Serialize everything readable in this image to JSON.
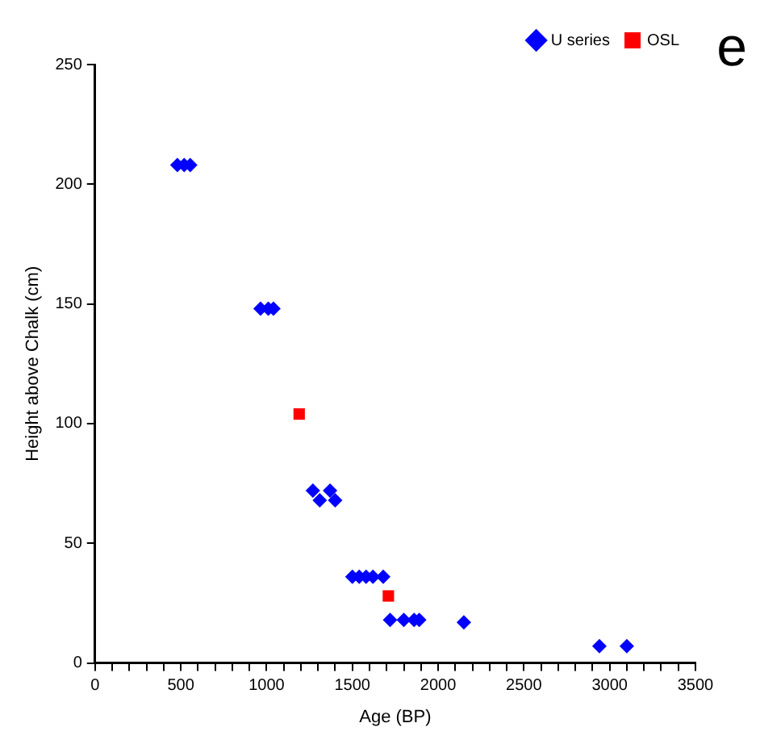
{
  "chart_data": {
    "type": "scatter",
    "xlabel": "Age (BP)",
    "ylabel": "Height above Chalk (cm)",
    "annotations": [
      "e"
    ],
    "xlim": [
      0,
      3500
    ],
    "ylim": [
      0,
      250
    ],
    "xticks": [
      0,
      {
        "value": 100,
        "label": null
      },
      {
        "value": 200,
        "label": null
      },
      {
        "value": 300,
        "label": null
      },
      {
        "value": 400,
        "label": null
      },
      500,
      {
        "value": 600,
        "label": null
      },
      {
        "value": 700,
        "label": null
      },
      {
        "value": 800,
        "label": null
      },
      {
        "value": 900,
        "label": null
      },
      1000,
      {
        "value": 1100,
        "label": null
      },
      {
        "value": 1200,
        "label": null
      },
      {
        "value": 1300,
        "label": null
      },
      {
        "value": 1400,
        "label": null
      },
      1500,
      {
        "value": 1600,
        "label": null
      },
      {
        "value": 1700,
        "label": null
      },
      {
        "value": 1800,
        "label": null
      },
      {
        "value": 1900,
        "label": null
      },
      2000,
      {
        "value": 2100,
        "label": null
      },
      {
        "value": 2200,
        "label": null
      },
      {
        "value": 2300,
        "label": null
      },
      {
        "value": 2400,
        "label": null
      },
      2500,
      {
        "value": 2600,
        "label": null
      },
      {
        "value": 2700,
        "label": null
      },
      {
        "value": 2800,
        "label": null
      },
      {
        "value": 2900,
        "label": null
      },
      3000,
      {
        "value": 3100,
        "label": null
      },
      {
        "value": 3200,
        "label": null
      },
      {
        "value": 3300,
        "label": null
      },
      {
        "value": 3400,
        "label": null
      },
      3500
    ],
    "yticks": [
      0,
      50,
      100,
      150,
      200,
      250
    ],
    "grid": false,
    "legend": "top right",
    "series": [
      {
        "name": "U series",
        "color": "#0000ff",
        "marker": "diamond",
        "x": [
          480,
          520,
          555,
          965,
          1010,
          1040,
          1270,
          1310,
          1370,
          1400,
          1500,
          1540,
          1580,
          1620,
          1680,
          1720,
          1800,
          1860,
          1890,
          2150,
          2940,
          3100
        ],
        "values": [
          208,
          208,
          208,
          148,
          148,
          148,
          72,
          68,
          72,
          68,
          36,
          36,
          36,
          36,
          36,
          18,
          18,
          18,
          18,
          17,
          7,
          7
        ]
      },
      {
        "name": "OSL",
        "color": "#ff0000",
        "marker": "square",
        "x": [
          1190,
          1710
        ],
        "values": [
          104,
          28
        ]
      }
    ]
  }
}
